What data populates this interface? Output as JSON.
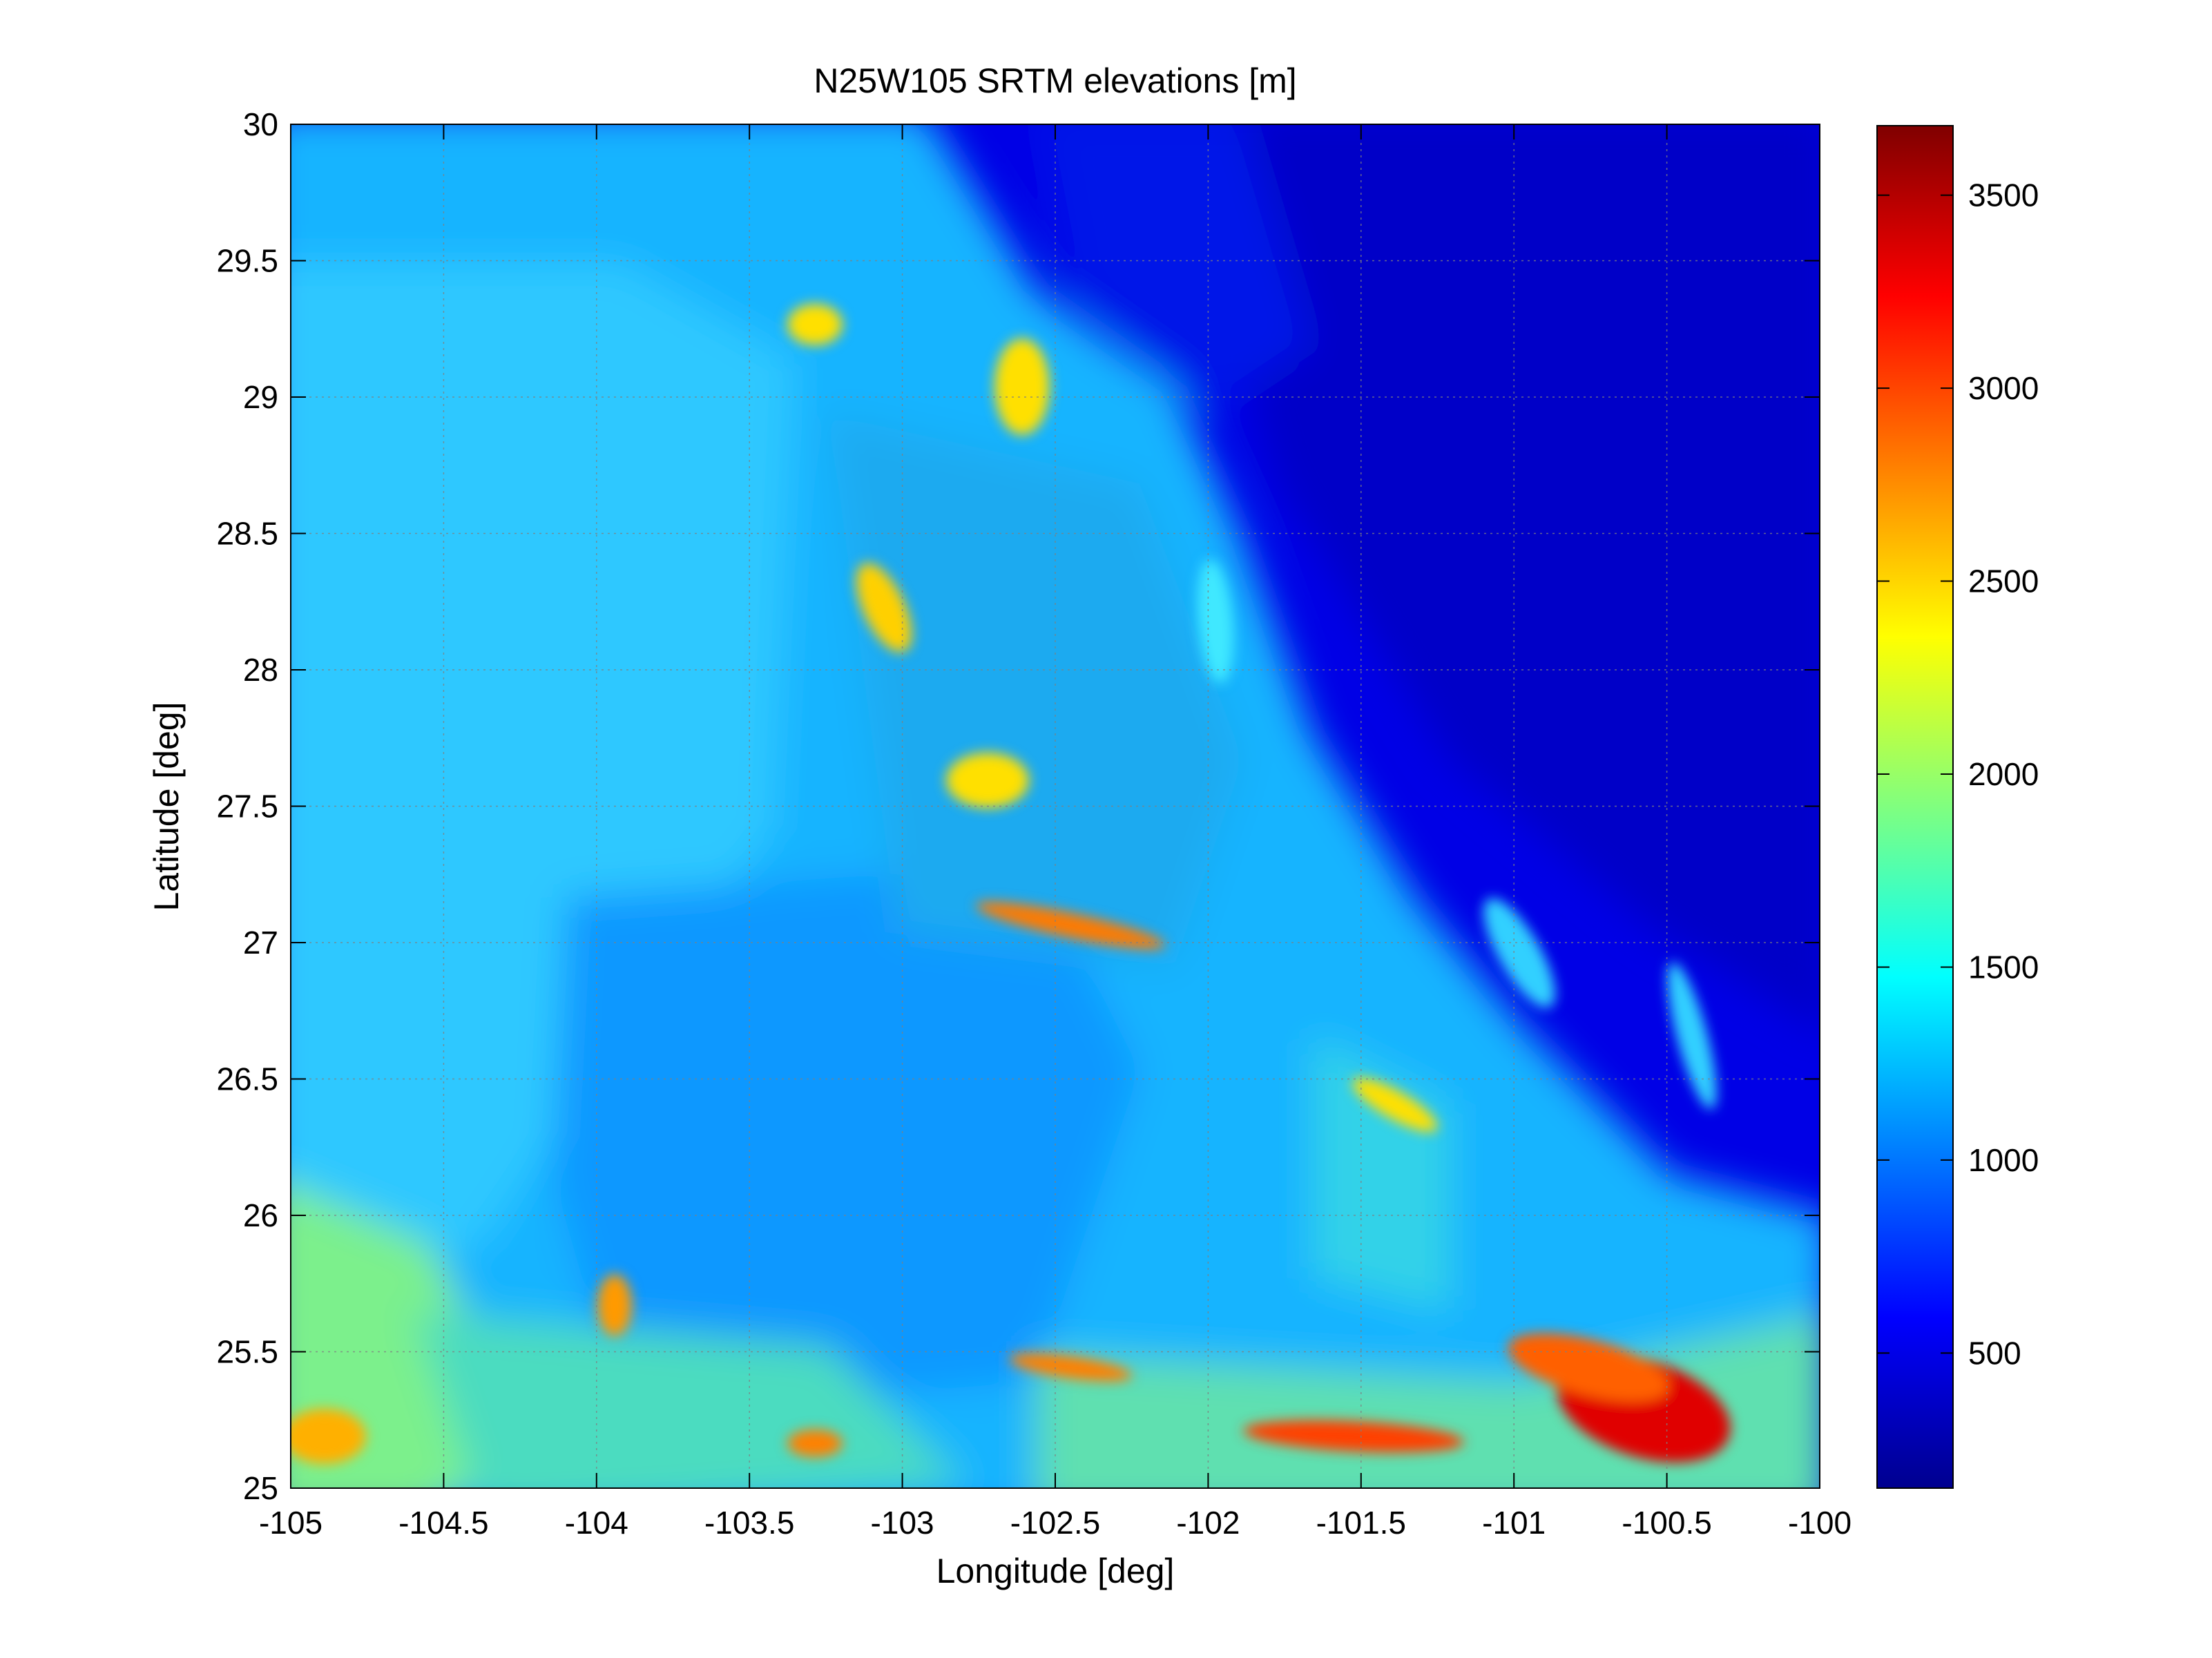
{
  "chart_data": {
    "type": "heatmap",
    "title": "N25W105 SRTM elevations [m]",
    "xlabel": "Longitude [deg]",
    "ylabel": "Latitude [deg]",
    "xlim": [
      -105,
      -100
    ],
    "ylim": [
      25,
      30
    ],
    "x_ticks": [
      -105,
      -104.5,
      -104,
      -103.5,
      -103,
      -102.5,
      -102,
      -101.5,
      -101,
      -100.5,
      -100
    ],
    "x_tick_labels": [
      "-105",
      "-104.5",
      "-104",
      "-103.5",
      "-103",
      "-102.5",
      "-102",
      "-101.5",
      "-101",
      "-100.5",
      "-100"
    ],
    "y_ticks": [
      25,
      25.5,
      26,
      26.5,
      27,
      27.5,
      28,
      28.5,
      29,
      29.5,
      30
    ],
    "y_tick_labels": [
      "25",
      "25.5",
      "26",
      "26.5",
      "27",
      "27.5",
      "28",
      "28.5",
      "29",
      "29.5",
      "30"
    ],
    "grid": true,
    "colormap": "jet",
    "colorbar": {
      "clim": [
        150,
        3680
      ],
      "ticks": [
        500,
        1000,
        1500,
        2000,
        2500,
        3000,
        3500
      ],
      "tick_labels": [
        "500",
        "1000",
        "1500",
        "2000",
        "2500",
        "3000",
        "3500"
      ],
      "placement": "right"
    },
    "colors": {
      "low": "#00008f",
      "mid": "#00ffff",
      "high": "#800000"
    }
  }
}
